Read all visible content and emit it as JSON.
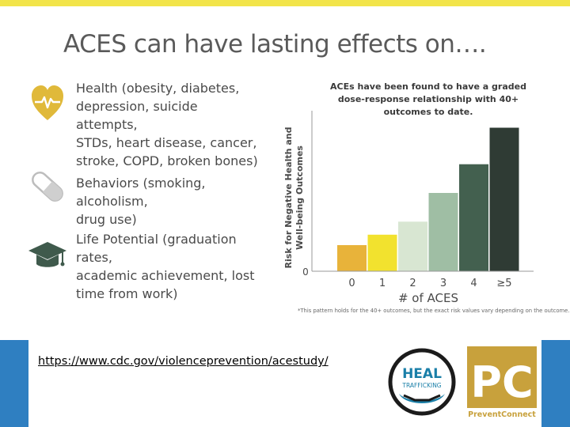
{
  "slide": {
    "title": "ACES can have lasting effects on….",
    "effects": [
      {
        "icon": "heart-pulse-icon",
        "lines": [
          "Health  (obesity, diabetes,",
          "depression, suicide attempts,",
          "STDs, heart disease, cancer,",
          "stroke, COPD, broken bones)"
        ]
      },
      {
        "icon": "pill-icon",
        "lines": [
          "Behaviors  (smoking, alcoholism,",
          "drug use)"
        ]
      },
      {
        "icon": "graduation-cap-icon",
        "lines": [
          "Life Potential  (graduation rates,",
          "academic achievement, lost",
          "time from work)"
        ]
      }
    ],
    "link": "https://www.cdc.gov/violenceprevention/acestudy/",
    "logos": {
      "heal": {
        "word": "HEAL",
        "sub": "TRAFFICKING"
      },
      "pc": {
        "word": "PC",
        "sub": "PreventConnect"
      }
    },
    "colors": {
      "top_bar": "#f2e44a",
      "footer_accent": "#2f7fc1",
      "icon": "#e0b93a"
    }
  },
  "chart_data": {
    "type": "bar",
    "title_lines": [
      "ACEs have been found to have a graded",
      "dose-response relationship with 40+ outcomes to date."
    ],
    "ylabel_lines": [
      "Risk for Negative Health and",
      "Well-being Outcomes"
    ],
    "xlabel": "# of ACES",
    "categories": [
      "0",
      "1",
      "2",
      "3",
      "4",
      "≥5"
    ],
    "values": [
      1.0,
      1.4,
      1.9,
      3.0,
      4.1,
      5.5
    ],
    "colors": [
      "#e8b33a",
      "#f2e22e",
      "#d8e6d2",
      "#9fbea4",
      "#43604f",
      "#2f3b34"
    ],
    "y_tick": "0",
    "ylim": [
      0,
      6
    ],
    "grid": false,
    "footnote": "*This pattern holds for the 40+ outcomes, but the exact risk values vary depending on the outcome."
  }
}
